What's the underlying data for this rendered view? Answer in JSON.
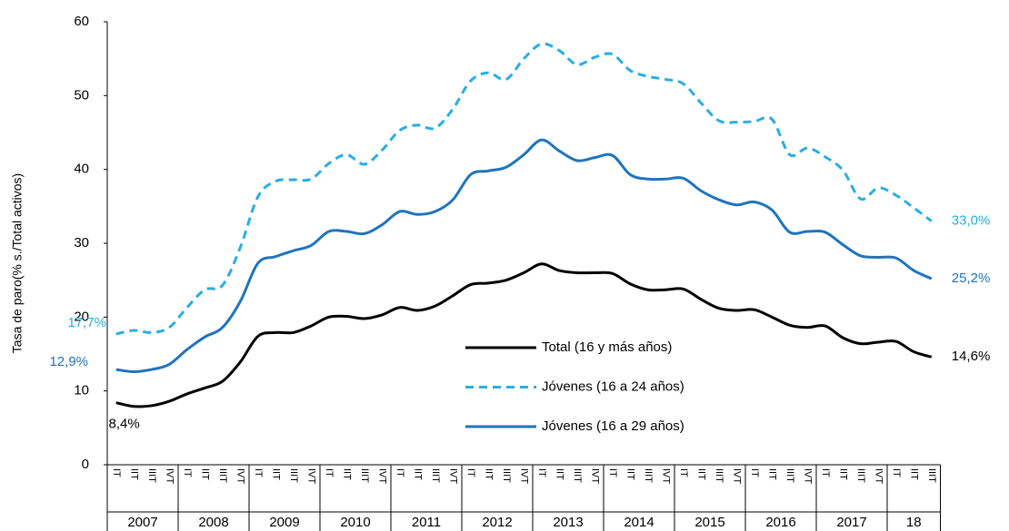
{
  "chart_data": {
    "type": "line",
    "y_label": "Tasa de paro(% s./Total activos)",
    "categories": [
      "IT",
      "IIT",
      "IIIT",
      "IVT",
      "IT",
      "IIT",
      "IIIT",
      "IVT",
      "IT",
      "IIT",
      "IIIT",
      "IVT",
      "IT",
      "IIT",
      "IIIT",
      "IVT",
      "IT",
      "IIT",
      "IIIT",
      "IVT",
      "IT",
      "IIT",
      "IIIT",
      "IVT",
      "IT",
      "IIT",
      "IIIT",
      "IVT",
      "IT",
      "IIT",
      "IIIT",
      "IVT",
      "IT",
      "IIT",
      "IIIT",
      "IVT",
      "IT",
      "IIT",
      "IIIT",
      "IVT",
      "IT",
      "IIT",
      "IIIT",
      "IVT",
      "IT",
      "IIT",
      "IIIT"
    ],
    "years": [
      "2007",
      "2008",
      "2009",
      "2010",
      "2011",
      "2012",
      "2013",
      "2014",
      "2015",
      "2016",
      "2017",
      "18"
    ],
    "ylim": [
      0,
      60
    ],
    "yticks": [
      0,
      10,
      20,
      30,
      40,
      50,
      60
    ],
    "series": [
      {
        "name": "Total (16 y más años)",
        "color": "#000000",
        "dashed": false,
        "values": [
          8.4,
          7.9,
          8.0,
          8.6,
          9.6,
          10.4,
          11.3,
          13.9,
          17.4,
          17.9,
          17.9,
          18.8,
          20.0,
          20.1,
          19.8,
          20.3,
          21.3,
          20.9,
          21.5,
          22.9,
          24.4,
          24.6,
          25.0,
          26.0,
          27.2,
          26.3,
          26.0,
          26.0,
          25.9,
          24.5,
          23.7,
          23.7,
          23.8,
          22.4,
          21.2,
          20.9,
          21.0,
          20.0,
          18.9,
          18.6,
          18.8,
          17.2,
          16.4,
          16.6,
          16.7,
          15.3,
          14.6
        ],
        "value_labels": [
          "8,4%",
          null,
          null,
          null,
          null,
          null,
          null,
          null,
          null,
          null,
          null,
          null,
          null,
          null,
          null,
          null,
          null,
          null,
          null,
          null,
          null,
          null,
          null,
          null,
          null,
          null,
          null,
          null,
          null,
          null,
          null,
          null,
          null,
          null,
          null,
          null,
          null,
          null,
          null,
          null,
          null,
          null,
          null,
          null,
          null,
          null,
          "14,6%"
        ]
      },
      {
        "name": "Jóvenes (16 a 24 años)",
        "color": "#29aee3",
        "dashed": true,
        "values": [
          17.7,
          18.2,
          17.9,
          18.6,
          21.3,
          23.7,
          24.3,
          29.4,
          36.3,
          38.4,
          38.6,
          38.7,
          40.8,
          42.0,
          40.7,
          42.6,
          45.3,
          46.0,
          45.6,
          48.2,
          52.0,
          53.1,
          52.2,
          55.0,
          57.0,
          56.1,
          54.2,
          55.2,
          55.6,
          53.4,
          52.6,
          52.2,
          51.6,
          49.0,
          46.6,
          46.4,
          46.5,
          46.8,
          42.0,
          42.9,
          41.7,
          39.9,
          36.0,
          37.5,
          36.5,
          34.8,
          33.0
        ],
        "value_labels": [
          "17,7%",
          null,
          null,
          null,
          null,
          null,
          null,
          null,
          null,
          null,
          null,
          null,
          null,
          null,
          null,
          null,
          null,
          null,
          null,
          null,
          null,
          null,
          null,
          null,
          null,
          null,
          null,
          null,
          null,
          null,
          null,
          null,
          null,
          null,
          null,
          null,
          null,
          null,
          null,
          null,
          null,
          null,
          null,
          null,
          null,
          null,
          "33,0%"
        ]
      },
      {
        "name": "Jóvenes (16 a 29 años)",
        "color": "#1f74bd",
        "dashed": false,
        "values": [
          12.9,
          12.6,
          12.9,
          13.6,
          15.6,
          17.3,
          18.6,
          22.1,
          27.3,
          28.2,
          29.0,
          29.7,
          31.6,
          31.6,
          31.3,
          32.5,
          34.3,
          33.9,
          34.3,
          35.9,
          39.3,
          39.8,
          40.3,
          42.0,
          44.0,
          42.5,
          41.2,
          41.6,
          41.9,
          39.3,
          38.7,
          38.7,
          38.8,
          37.1,
          35.9,
          35.2,
          35.6,
          34.5,
          31.5,
          31.6,
          31.5,
          29.8,
          28.3,
          28.1,
          28.0,
          26.3,
          25.2
        ],
        "value_labels": [
          "12,9%",
          null,
          null,
          null,
          null,
          null,
          null,
          null,
          null,
          null,
          null,
          null,
          null,
          null,
          null,
          null,
          null,
          null,
          null,
          null,
          null,
          null,
          null,
          null,
          null,
          null,
          null,
          null,
          null,
          null,
          null,
          null,
          null,
          null,
          null,
          null,
          null,
          null,
          null,
          null,
          null,
          null,
          null,
          null,
          null,
          null,
          "25,2%"
        ]
      }
    ]
  }
}
